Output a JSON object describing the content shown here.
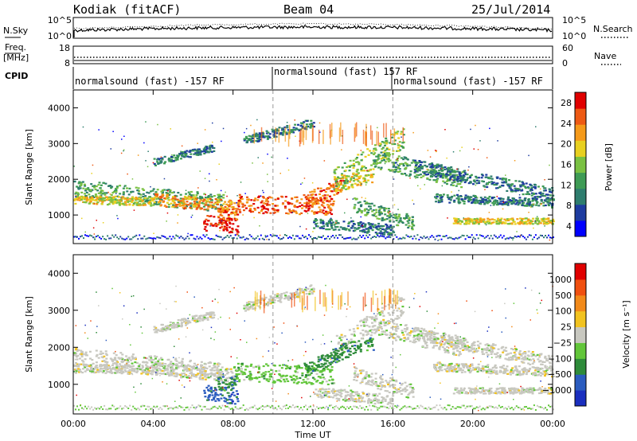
{
  "header": {
    "station": "Kodiak (fitACF)",
    "beam": "Beam 04",
    "date": "25/Jul/2014"
  },
  "top_panel": {
    "left_label": "N.Sky",
    "right_label": "N.Search",
    "left_ticks": [
      "10^5",
      "10^0"
    ],
    "right_ticks": [
      "10^5",
      "10^0"
    ]
  },
  "freq_panel": {
    "left_label_1": "Freq.",
    "left_label_2": "[MHz]",
    "right_label": "Nave",
    "left_ticks": [
      "18",
      "8"
    ],
    "right_ticks": [
      "60",
      "0"
    ]
  },
  "cpid_panel": {
    "label": "CPID",
    "segments": [
      "normalsound (fast) -157 RF",
      "normalsound (fast) 157 RF",
      "normalsound (fast) -157 RF"
    ]
  },
  "colors": {
    "power_scale": [
      "#0000ff",
      "#1e3ca0",
      "#2e7d6e",
      "#3e9b55",
      "#7ac142",
      "#e8d020",
      "#f59a1a",
      "#ee5a14",
      "#e00000"
    ],
    "velocity_scale": [
      "#1a2fbf",
      "#2b5cbf",
      "#2e8b3a",
      "#62c63a",
      "#c8c8c0",
      "#f2c320",
      "#f28a1a",
      "#f05010",
      "#e00000"
    ]
  },
  "chart_data": [
    {
      "type": "heatmap",
      "name": "power",
      "ylabel": "Slant Range [km]",
      "ylim": [
        200,
        4500
      ],
      "yticks": [
        "4000",
        "3000",
        "2000",
        "1000"
      ],
      "colorbar_label": "Power [dB]",
      "colorbar_ticks": [
        "28",
        "24",
        "20",
        "16",
        "12",
        "8",
        "4"
      ],
      "colorbar_range": [
        0,
        30
      ]
    },
    {
      "type": "heatmap",
      "name": "velocity",
      "ylabel": "Slant Range [km]",
      "ylim": [
        200,
        4500
      ],
      "yticks": [
        "4000",
        "3000",
        "2000",
        "1000"
      ],
      "colorbar_label": "Velocity [m s⁻¹]",
      "colorbar_ticks": [
        "1000",
        "500",
        "100",
        "25",
        "−25",
        "−100",
        "−500",
        "−1000"
      ],
      "xlabel": "Time UT",
      "xticks": [
        "00:00",
        "04:00",
        "08:00",
        "12:00",
        "16:00",
        "20:00",
        "00:00"
      ],
      "xlim_hours": [
        0,
        24
      ]
    }
  ]
}
